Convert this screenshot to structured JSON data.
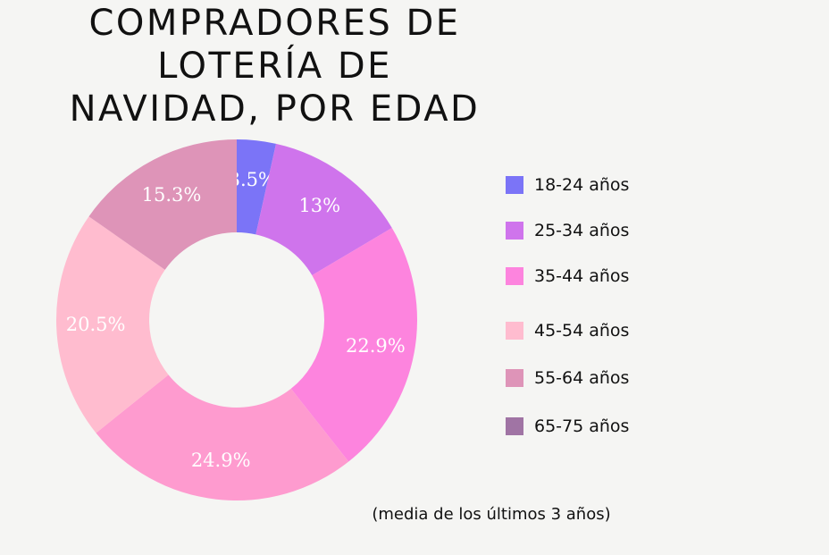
{
  "chart_data": {
    "type": "pie",
    "donut": true,
    "title": "COMPRADORES DE LOTERÍA DE NAVIDAD, POR EDAD",
    "title_lines": [
      "COMPRADORES DE",
      "LOTERÍA DE",
      "NAVIDAD, POR EDAD"
    ],
    "slices": [
      {
        "value": 3.5,
        "label": "3.5%",
        "color": "#7b74f7"
      },
      {
        "value": 13,
        "label": "13%",
        "color": "#cf74ec"
      },
      {
        "value": 22.9,
        "label": "22.9%",
        "color": "#fd84de"
      },
      {
        "value": 24.9,
        "label": "24.9%",
        "color": "#fe9bcf"
      },
      {
        "value": 20.5,
        "label": "20.5%",
        "color": "#ffbccf"
      },
      {
        "value": 15.3,
        "label": "15.3%",
        "color": "#de94b8"
      }
    ],
    "legend": [
      {
        "label": "18-24 años",
        "color": "#7b74f7"
      },
      {
        "label": "25-34 años",
        "color": "#cf74ec"
      },
      {
        "label": "35-44 años",
        "color": "#fd84de"
      },
      {
        "label": "45-54 años",
        "color": "#ffbccf"
      },
      {
        "label": "55-64 años",
        "color": "#de94b8"
      },
      {
        "label": "65-75 años",
        "color": "#a074a4"
      }
    ],
    "legend_placement": "right",
    "note": "(media de los últimos 3 años)"
  }
}
